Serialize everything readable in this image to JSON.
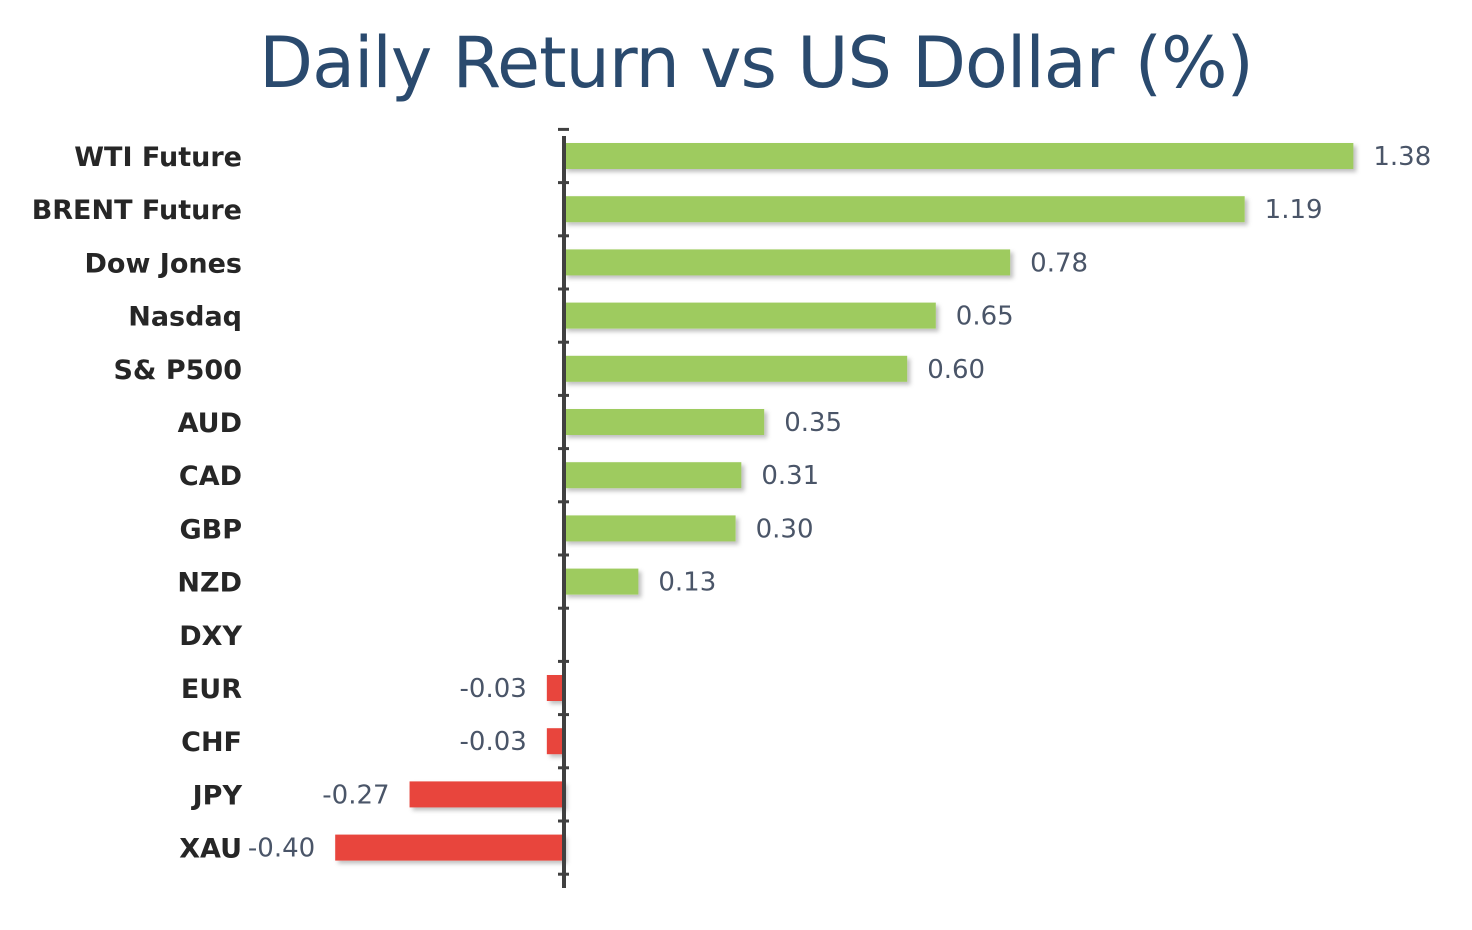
{
  "chart_data": {
    "type": "bar",
    "orientation": "horizontal",
    "title": "Daily Return vs US Dollar (%)",
    "categories": [
      "WTI Future",
      "BRENT Future",
      "Dow Jones",
      "Nasdaq",
      "S& P500",
      "AUD",
      "CAD",
      "GBP",
      "NZD",
      "DXY",
      "EUR",
      "CHF",
      "JPY",
      "XAU"
    ],
    "values": [
      1.38,
      1.19,
      0.78,
      0.65,
      0.6,
      0.35,
      0.31,
      0.3,
      0.13,
      null,
      -0.03,
      -0.03,
      -0.27,
      -0.4
    ],
    "value_labels": [
      "1.38",
      "1.19",
      "0.78",
      "0.65",
      "0.60",
      "0.35",
      "0.31",
      "0.30",
      "0.13",
      "",
      "-0.03",
      "-0.03",
      "-0.27",
      "-0.40"
    ],
    "xlabel": "",
    "ylabel": "",
    "xlim": [
      -0.4,
      1.38
    ],
    "grid": false,
    "legend": "none",
    "colors": {
      "positive": "#9ecb5f",
      "negative": "#e8453c",
      "axis": "#404040",
      "title": "#2a4a6e",
      "category_text": "#262626",
      "value_text": "#4a5568"
    }
  }
}
